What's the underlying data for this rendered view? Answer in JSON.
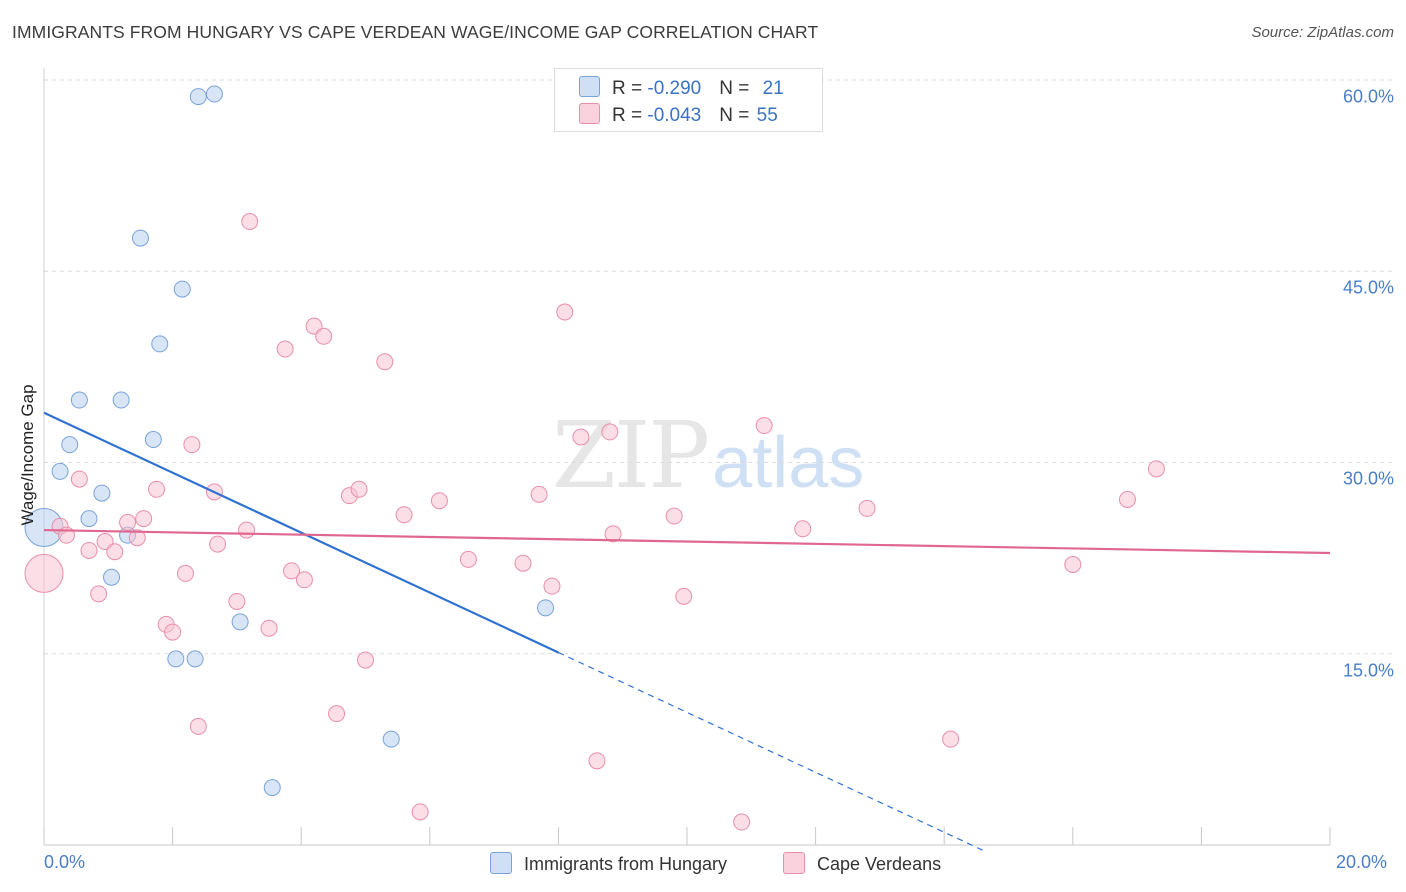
{
  "header": {
    "title": "IMMIGRANTS FROM HUNGARY VS CAPE VERDEAN WAGE/INCOME GAP CORRELATION CHART",
    "source": "Source: ZipAtlas.com"
  },
  "watermark": {
    "zip": "ZIP",
    "atlas": "atlas"
  },
  "legend": {
    "rows": [
      {
        "r_label": "R = ",
        "r_value": "-0.290",
        "n_label": "N = ",
        "n_value": "21",
        "color": "#b7d0f0"
      },
      {
        "r_label": "R = ",
        "r_value": "-0.043",
        "n_label": "N = ",
        "n_value": "55",
        "color": "#f7c3d2"
      }
    ]
  },
  "chart_data": {
    "type": "scatter",
    "title": "IMMIGRANTS FROM HUNGARY VS CAPE VERDEAN WAGE/INCOME GAP CORRELATION CHART",
    "xlabel": "",
    "ylabel": "Wage/Income Gap",
    "xlim": [
      0,
      20
    ],
    "ylim": [
      0,
      60
    ],
    "x_ticks": [
      "0.0%",
      "20.0%"
    ],
    "y_ticks": [
      "15.0%",
      "30.0%",
      "45.0%",
      "60.0%"
    ],
    "grid": true,
    "legend_position": "bottom-center",
    "series": [
      {
        "name": "Immigrants from Hungary",
        "color": "#b7d0f0",
        "stroke": "#7aa3d8",
        "trend_color": "#2f72d1",
        "trend": {
          "x1": 0,
          "y1": 33.9,
          "x2": 8.0,
          "y2": 15.1,
          "dashed_to_x": 14.6
        },
        "points": [
          [
            0.0,
            24.9,
            "large"
          ],
          [
            0.25,
            29.3
          ],
          [
            0.4,
            31.4
          ],
          [
            0.55,
            34.9
          ],
          [
            0.7,
            25.6
          ],
          [
            0.9,
            27.6
          ],
          [
            1.05,
            21.0
          ],
          [
            1.2,
            34.9
          ],
          [
            1.3,
            24.3
          ],
          [
            1.5,
            47.6
          ],
          [
            1.7,
            31.8
          ],
          [
            1.8,
            39.3
          ],
          [
            2.05,
            14.6
          ],
          [
            2.15,
            43.6
          ],
          [
            2.35,
            14.6
          ],
          [
            2.4,
            58.7
          ],
          [
            2.65,
            58.9
          ],
          [
            3.05,
            17.5
          ],
          [
            3.55,
            4.5
          ],
          [
            5.4,
            8.3
          ],
          [
            7.8,
            18.6
          ]
        ]
      },
      {
        "name": "Cape Verdeans",
        "color": "#f7c3d2",
        "stroke": "#e88fab",
        "trend_color": "#e06890",
        "trend": {
          "x1": 0,
          "y1": 24.7,
          "x2": 20,
          "y2": 22.9
        },
        "points": [
          [
            0.0,
            21.3,
            "large"
          ],
          [
            0.25,
            25.0
          ],
          [
            0.35,
            24.3
          ],
          [
            0.55,
            28.7
          ],
          [
            0.7,
            23.1
          ],
          [
            0.85,
            19.7
          ],
          [
            0.95,
            23.8
          ],
          [
            1.1,
            23.0
          ],
          [
            1.3,
            25.3
          ],
          [
            1.45,
            24.1
          ],
          [
            1.55,
            25.6
          ],
          [
            1.75,
            27.9
          ],
          [
            1.9,
            17.3
          ],
          [
            2.0,
            16.7
          ],
          [
            2.2,
            21.3
          ],
          [
            2.3,
            31.4
          ],
          [
            2.4,
            9.3
          ],
          [
            2.65,
            27.7
          ],
          [
            2.7,
            23.6
          ],
          [
            3.0,
            19.1
          ],
          [
            3.15,
            24.7
          ],
          [
            3.2,
            48.9
          ],
          [
            3.5,
            17.0
          ],
          [
            3.75,
            38.9
          ],
          [
            3.85,
            21.5
          ],
          [
            4.05,
            20.8
          ],
          [
            4.2,
            40.7
          ],
          [
            4.35,
            39.9
          ],
          [
            4.55,
            10.3
          ],
          [
            4.75,
            27.4
          ],
          [
            4.9,
            27.9
          ],
          [
            5.0,
            14.5
          ],
          [
            5.3,
            37.9
          ],
          [
            5.6,
            25.9
          ],
          [
            5.85,
            2.6
          ],
          [
            6.15,
            27.0
          ],
          [
            6.6,
            22.4
          ],
          [
            7.45,
            22.1
          ],
          [
            7.7,
            27.5
          ],
          [
            7.9,
            20.3
          ],
          [
            8.1,
            41.8
          ],
          [
            8.35,
            32.0
          ],
          [
            8.6,
            6.6
          ],
          [
            8.8,
            32.4
          ],
          [
            8.85,
            24.4
          ],
          [
            9.8,
            25.8
          ],
          [
            9.95,
            19.5
          ],
          [
            10.85,
            1.8
          ],
          [
            11.2,
            32.9
          ],
          [
            11.8,
            24.8
          ],
          [
            12.8,
            26.4
          ],
          [
            14.1,
            8.3
          ],
          [
            16.0,
            22.0
          ],
          [
            16.85,
            27.1
          ],
          [
            17.3,
            29.5
          ]
        ]
      }
    ]
  }
}
